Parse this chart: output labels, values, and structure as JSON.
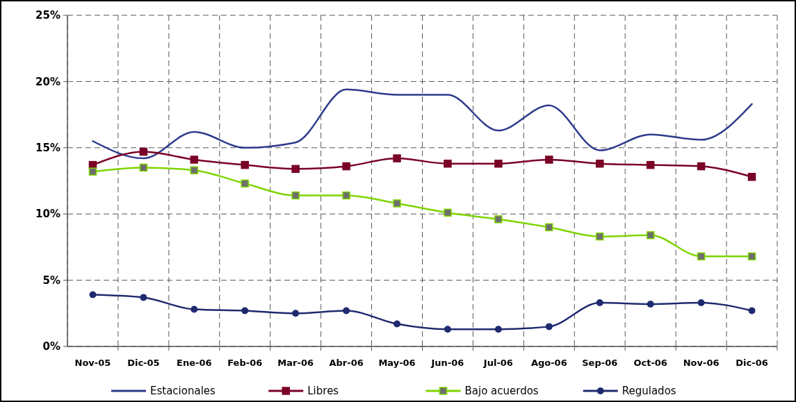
{
  "chart_data": {
    "type": "line",
    "categories": [
      "Nov-05",
      "Dic-05",
      "Ene-06",
      "Feb-06",
      "Mar-06",
      "Abr-06",
      "May-06",
      "Jun-06",
      "Jul-06",
      "Ago-06",
      "Sep-06",
      "Oct-06",
      "Nov-06",
      "Dic-06"
    ],
    "series": [
      {
        "name": "Estacionales",
        "color": "#2e3a8c",
        "marker": "none",
        "values": [
          15.5,
          14.2,
          16.2,
          15.0,
          15.4,
          19.4,
          19.0,
          19.0,
          16.3,
          18.2,
          14.8,
          16.0,
          15.6,
          18.3
        ]
      },
      {
        "name": "Libres",
        "color": "#7a0026",
        "marker": "square",
        "values": [
          13.7,
          14.7,
          14.1,
          13.7,
          13.4,
          13.6,
          14.2,
          13.8,
          13.8,
          14.1,
          13.8,
          13.7,
          13.6,
          12.8
        ]
      },
      {
        "name": "Bajo acuerdos",
        "color": "#7fd400",
        "marker": "square",
        "values": [
          13.2,
          13.5,
          13.3,
          12.3,
          11.4,
          11.4,
          10.8,
          10.1,
          9.6,
          9.0,
          8.3,
          8.4,
          6.8,
          6.8
        ]
      },
      {
        "name": "Regulados",
        "color": "#1f2a6e",
        "marker": "circle",
        "values": [
          3.9,
          3.7,
          2.8,
          2.7,
          2.5,
          2.7,
          1.7,
          1.3,
          1.3,
          1.5,
          3.3,
          3.2,
          3.3,
          2.7
        ]
      }
    ],
    "ylim": [
      0,
      25
    ],
    "yticks": [
      {
        "value": 0,
        "label": "0%"
      },
      {
        "value": 5,
        "label": "5%"
      },
      {
        "value": 10,
        "label": "10%"
      },
      {
        "value": 15,
        "label": "15%"
      },
      {
        "value": 20,
        "label": "20%"
      },
      {
        "value": 25,
        "label": "25%"
      }
    ],
    "grid": true,
    "legend": "bottom",
    "line_style": "solid"
  }
}
